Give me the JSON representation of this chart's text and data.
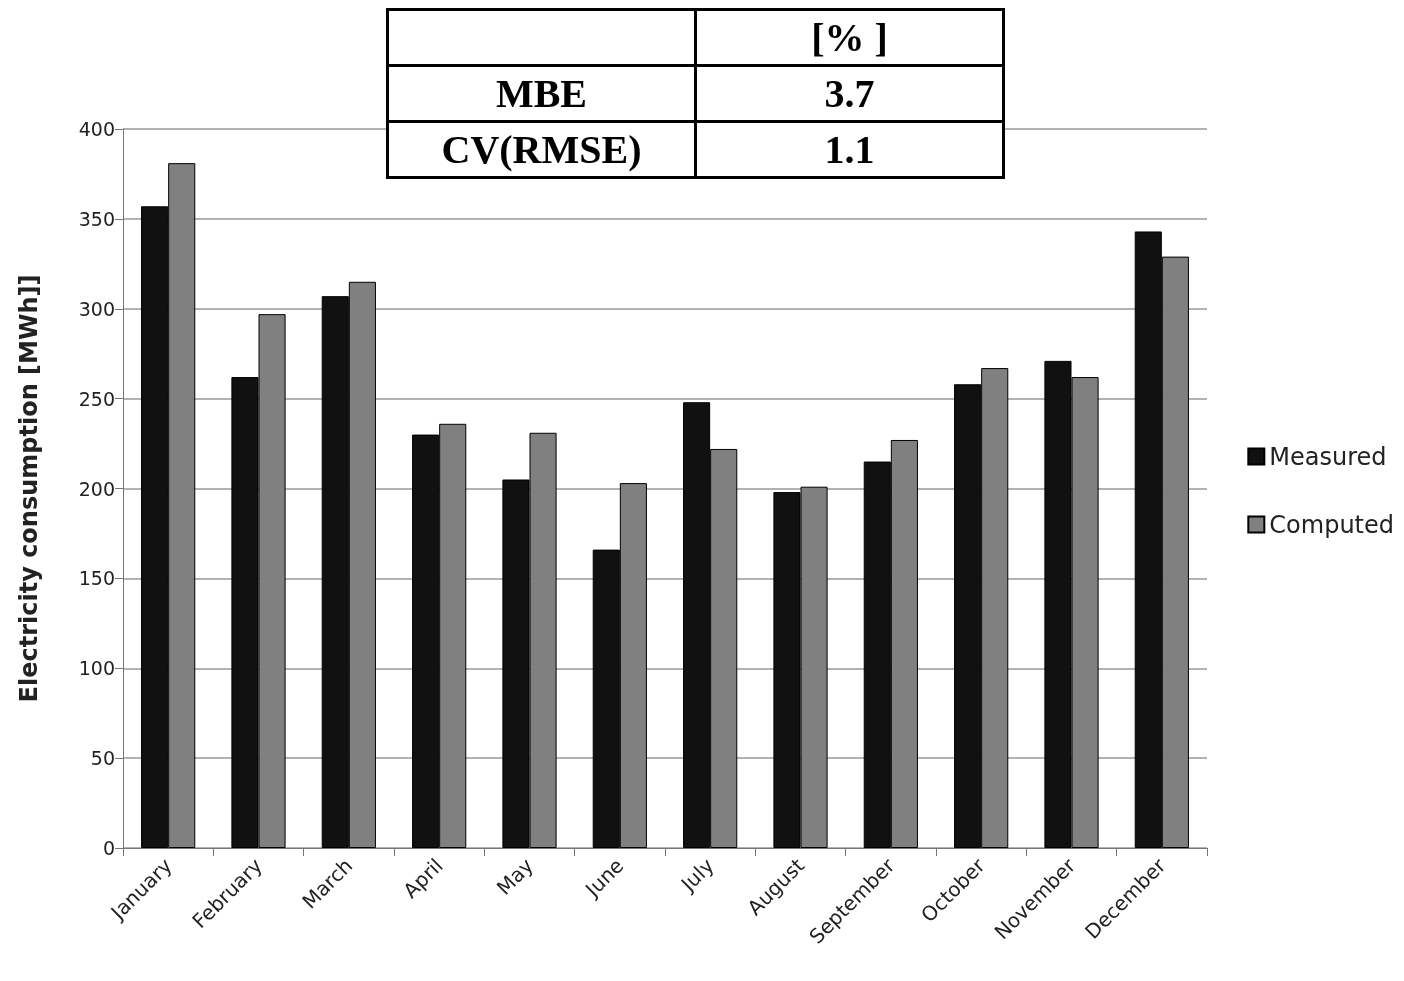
{
  "chart_data": {
    "type": "bar",
    "ylabel": "Electricity consumption [MWh]]",
    "categories": [
      "January",
      "February",
      "March",
      "April",
      "May",
      "June",
      "July",
      "August",
      "September",
      "October",
      "November",
      "December"
    ],
    "series": [
      {
        "name": "Measured",
        "color": "#111111",
        "values": [
          357,
          262,
          307,
          230,
          205,
          166,
          248,
          198,
          215,
          258,
          271,
          343
        ]
      },
      {
        "name": "Computed",
        "color": "#808080",
        "values": [
          381,
          297,
          315,
          236,
          231,
          203,
          222,
          201,
          227,
          267,
          262,
          329
        ]
      }
    ],
    "ylim": [
      0,
      400
    ],
    "yticks": [
      0,
      50,
      100,
      150,
      200,
      250,
      300,
      350,
      400
    ],
    "grid": "y",
    "legend": "right",
    "annotations": [
      "[% ]",
      "MBE",
      "3.7",
      "CV(RMSE)",
      "1.1"
    ]
  }
}
